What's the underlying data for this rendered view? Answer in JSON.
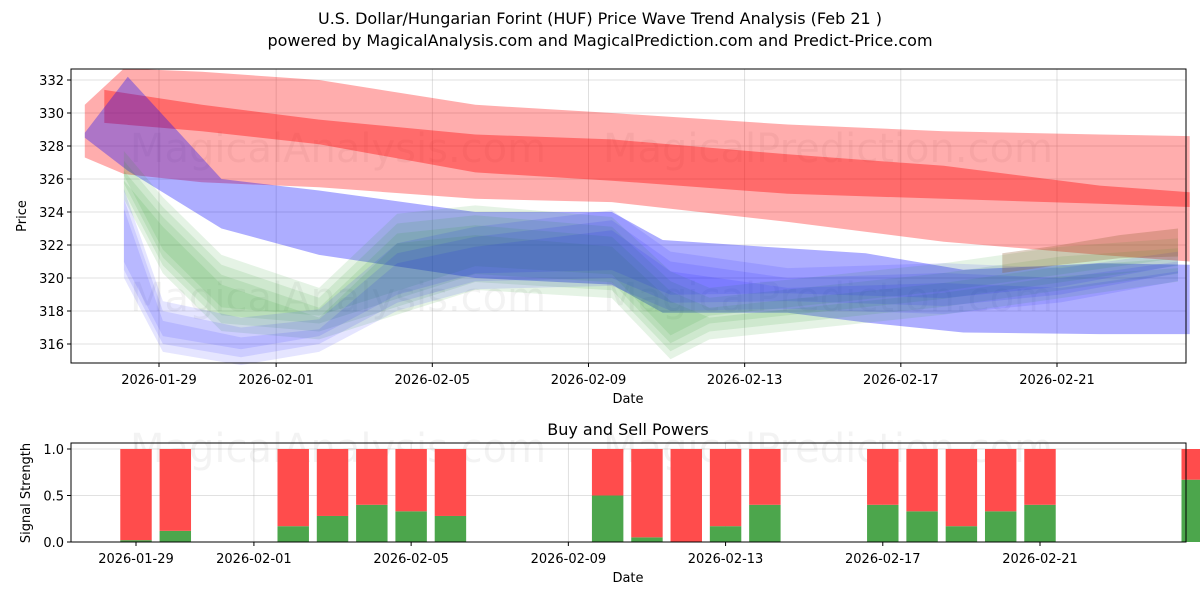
{
  "header": {
    "title": "U.S. Dollar/Hungarian Forint (HUF) Price Wave Trend Analysis (Feb 21 )",
    "subtitle": "powered by MagicalAnalysis.com and MagicalPrediction.com and Predict-Price.com"
  },
  "watermarks": [
    "MagicalAnalysis.com",
    "MagicalPrediction.com"
  ],
  "colors": {
    "red": "#ff0000",
    "blue": "#0000ff",
    "green": "#2ca02c",
    "buy": "#4ca64c",
    "sell": "#ff4c4c"
  },
  "chart_data": [
    {
      "type": "area",
      "title": "",
      "xlabel": "Date",
      "ylabel": "Price",
      "xlim": [
        "2026-01-26",
        "2026-02-25"
      ],
      "ylim": [
        315,
        332.6
      ],
      "x_ticks": [
        "2026-01-29",
        "2026-02-01",
        "2026-02-05",
        "2026-02-09",
        "2026-02-13",
        "2026-02-17",
        "2026-02-21"
      ],
      "y_ticks": [
        316,
        318,
        320,
        322,
        324,
        326,
        328,
        330,
        332
      ],
      "grid": true,
      "series": [
        {
          "name": "red band outer",
          "color": "#ff0000",
          "x": [
            0,
            1,
            3,
            6,
            10,
            13.5,
            18,
            22,
            26,
            28.3
          ],
          "upper": [
            330.5,
            332.7,
            332.5,
            332.0,
            330.5,
            330.0,
            329.3,
            328.9,
            328.7,
            328.6
          ],
          "lower": [
            327.3,
            326.3,
            325.8,
            325.5,
            324.8,
            324.6,
            323.4,
            322.2,
            321.4,
            321.0
          ]
        },
        {
          "name": "red band inner",
          "color": "#ff0000",
          "x": [
            0.5,
            3,
            6,
            10,
            13.5,
            18,
            22,
            26,
            28.3
          ],
          "upper": [
            331.4,
            330.5,
            329.6,
            328.7,
            328.4,
            327.5,
            326.8,
            325.6,
            325.2
          ],
          "lower": [
            329.4,
            328.9,
            328.1,
            326.4,
            325.9,
            325.1,
            324.8,
            324.5,
            324.3
          ]
        },
        {
          "name": "blue band",
          "color": "#0000ff",
          "x": [
            0,
            1.1,
            3.5,
            6,
            10,
            13.5,
            14.8,
            18,
            20,
            22.5,
            26,
            28.3
          ],
          "upper": [
            328.8,
            332.2,
            326.0,
            325.3,
            324.0,
            324.0,
            322.3,
            321.8,
            321.5,
            320.5,
            320.9,
            320.8
          ],
          "lower": [
            328.5,
            326.5,
            323.0,
            321.4,
            320.0,
            319.6,
            317.9,
            317.9,
            317.3,
            316.7,
            316.6,
            316.6
          ]
        },
        {
          "name": "green waves",
          "color": "#2ca02c",
          "x": [
            1,
            2,
            3.5,
            6,
            8,
            10,
            13.5,
            15,
            16,
            18,
            22,
            25,
            28
          ],
          "upper": [
            326.8,
            324.0,
            320.5,
            318.5,
            323.0,
            323.5,
            322.8,
            319.5,
            318.5,
            319.0,
            320.0,
            321.0,
            321.5
          ],
          "lower": [
            325.5,
            321.0,
            317.5,
            317.0,
            318.5,
            320.0,
            319.5,
            315.8,
            317.0,
            317.5,
            318.5,
            319.5,
            320.5
          ]
        },
        {
          "name": "blue fan",
          "color": "#0000ff",
          "x": [
            1,
            2,
            4,
            6,
            8,
            10,
            13.5,
            15,
            18,
            22,
            25,
            28
          ],
          "upper": [
            324.8,
            318.0,
            317.0,
            317.5,
            321.5,
            322.5,
            323.5,
            321.0,
            320.0,
            320.3,
            320.0,
            321.0
          ],
          "lower": [
            320.5,
            316.0,
            315.2,
            316.0,
            318.5,
            319.8,
            320.0,
            318.5,
            318.6,
            318.3,
            319.0,
            320.3
          ]
        },
        {
          "name": "brown tail",
          "color": "#8b5a2b",
          "x": [
            23.5,
            25,
            26.5,
            28
          ],
          "upper": [
            321.5,
            322.0,
            322.6,
            323.0
          ],
          "lower": [
            320.3,
            320.8,
            321.2,
            321.3
          ]
        }
      ]
    },
    {
      "type": "bar",
      "title": "Buy and Sell Powers",
      "xlabel": "Date",
      "ylabel": "Signal Strength",
      "ylim": [
        0,
        1.05
      ],
      "y_ticks": [
        "0.0",
        "0.5",
        "1.0"
      ],
      "x_ticks": [
        "2026-01-29",
        "2026-02-01",
        "2026-02-05",
        "2026-02-09",
        "2026-02-13",
        "2026-02-17",
        "2026-02-21"
      ],
      "series": [
        {
          "name": "Buy",
          "color": "#4ca64c",
          "values": [
            0.02,
            0.12,
            0,
            0,
            0.17,
            0.28,
            0.4,
            0.33,
            0.28,
            0,
            0,
            0,
            0.5,
            0.05,
            0,
            0.17,
            0.4,
            0,
            0,
            0.4,
            0.33,
            0.17,
            0.33,
            0.4,
            0,
            0,
            0,
            0.67
          ]
        },
        {
          "name": "Sell",
          "color": "#ff4c4c",
          "values": [
            0.98,
            0.88,
            0,
            0,
            0.83,
            0.72,
            0.6,
            0.67,
            0.72,
            0,
            0,
            0,
            0.5,
            0.95,
            1.0,
            0.83,
            0.6,
            0,
            0,
            0.6,
            0.67,
            0.83,
            0.67,
            0.6,
            0,
            0,
            0,
            0.33
          ]
        }
      ]
    }
  ]
}
